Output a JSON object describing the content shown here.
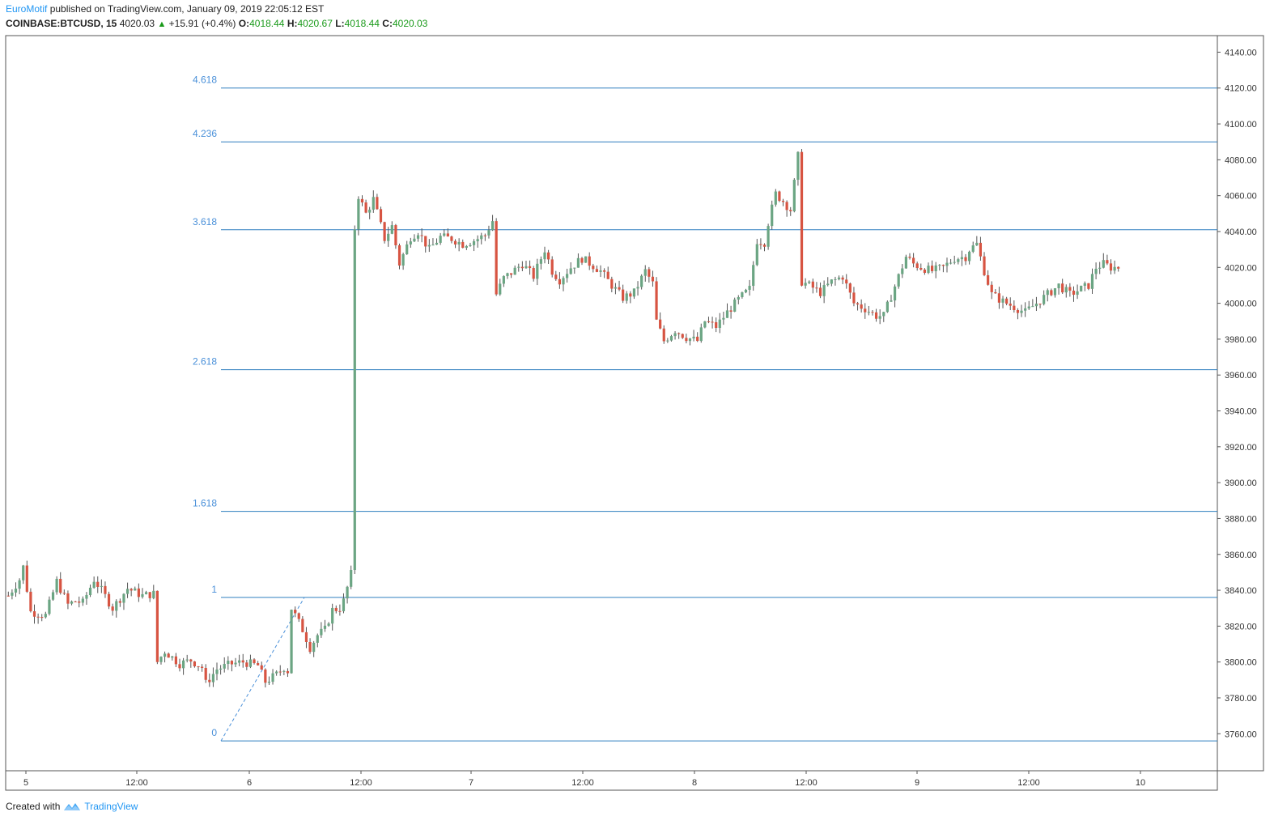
{
  "header": {
    "author": "EuroMotif",
    "published": "published on TradingView.com, January 09, 2019 22:05:12 EST",
    "symbol": "COINBASE:BTCUSD, 15",
    "last": "4020.03",
    "change_icon": "triangle-up-icon",
    "change": "+15.91 (+0.4%)",
    "o_label": "O:",
    "o": "4018.44",
    "h_label": "H:",
    "h": "4020.67",
    "l_label": "L:",
    "l": "4018.44",
    "c_label": "C:",
    "c": "4020.03"
  },
  "footer": {
    "created_with": "Created with",
    "brand": "TradingView",
    "logo_icon": "tradingview-logo-icon"
  },
  "colors": {
    "up": "#6ba583",
    "down": "#d75442",
    "fib": "#2f7fbf",
    "fib_label": "#4a90d9",
    "axis": "#555555"
  },
  "chart_data": {
    "type": "candlestick",
    "symbol": "COINBASE:BTCUSD",
    "interval": "15",
    "ylim": [
      3745,
      4150
    ],
    "y_ticks": [
      "4140.00",
      "4120.00",
      "4100.00",
      "4080.00",
      "4060.00",
      "4040.00",
      "4020.00",
      "4000.00",
      "3980.00",
      "3960.00",
      "3940.00",
      "3920.00",
      "3900.00",
      "3880.00",
      "3860.00",
      "3840.00",
      "3820.00",
      "3800.00",
      "3780.00",
      "3760.00"
    ],
    "x_ticks": [
      "5",
      "12:00",
      "6",
      "12:00",
      "7",
      "12:00",
      "8",
      "12:00",
      "9",
      "12:00",
      "10"
    ],
    "fib_extension": {
      "anchor_low": 3756,
      "anchor_high": 3836,
      "levels": [
        {
          "label": "0",
          "price": 3756
        },
        {
          "label": "1",
          "price": 3836
        },
        {
          "label": "1.618",
          "price": 3884
        },
        {
          "label": "2.618",
          "price": 3963
        },
        {
          "label": "3.618",
          "price": 4041
        },
        {
          "label": "4.236",
          "price": 4090
        },
        {
          "label": "4.618",
          "price": 4120
        }
      ]
    },
    "price_path": [
      [
        0,
        3837
      ],
      [
        3,
        3846
      ],
      [
        4,
        3853
      ],
      [
        6,
        3828
      ],
      [
        10,
        3826
      ],
      [
        13,
        3845
      ],
      [
        16,
        3832
      ],
      [
        18,
        3834
      ],
      [
        20,
        3833
      ],
      [
        23,
        3846
      ],
      [
        25,
        3840
      ],
      [
        28,
        3830
      ],
      [
        32,
        3841
      ],
      [
        36,
        3837
      ],
      [
        39,
        3838
      ],
      [
        40,
        3800
      ],
      [
        42,
        3806
      ],
      [
        46,
        3799
      ],
      [
        49,
        3801
      ],
      [
        52,
        3797
      ],
      [
        53,
        3788
      ],
      [
        56,
        3796
      ],
      [
        60,
        3799
      ],
      [
        63,
        3800
      ],
      [
        67,
        3798
      ],
      [
        69,
        3789
      ],
      [
        72,
        3793
      ],
      [
        74,
        3797
      ],
      [
        75,
        3795
      ],
      [
        76,
        3830
      ],
      [
        79,
        3818
      ],
      [
        81,
        3808
      ],
      [
        83,
        3815
      ],
      [
        85,
        3818
      ],
      [
        87,
        3829
      ],
      [
        89,
        3830
      ],
      [
        90,
        3834
      ],
      [
        92,
        3849
      ],
      [
        93,
        4042
      ],
      [
        94,
        4060
      ],
      [
        96,
        4050
      ],
      [
        98,
        4058
      ],
      [
        101,
        4036
      ],
      [
        103,
        4043
      ],
      [
        105,
        4022
      ],
      [
        108,
        4037
      ],
      [
        110,
        4040
      ],
      [
        113,
        4030
      ],
      [
        116,
        4037
      ],
      [
        119,
        4036
      ],
      [
        122,
        4033
      ],
      [
        125,
        4035
      ],
      [
        128,
        4038
      ],
      [
        130,
        4046
      ],
      [
        131,
        4005
      ],
      [
        133,
        4014
      ],
      [
        135,
        4017
      ],
      [
        138,
        4022
      ],
      [
        141,
        4015
      ],
      [
        144,
        4030
      ],
      [
        146,
        4018
      ],
      [
        148,
        4013
      ],
      [
        151,
        4020
      ],
      [
        154,
        4025
      ],
      [
        157,
        4021
      ],
      [
        159,
        4018
      ],
      [
        162,
        4010
      ],
      [
        165,
        4003
      ],
      [
        168,
        4006
      ],
      [
        171,
        4018
      ],
      [
        173,
        4011
      ],
      [
        174,
        3990
      ],
      [
        176,
        3979
      ],
      [
        179,
        3985
      ],
      [
        182,
        3981
      ],
      [
        185,
        3979
      ],
      [
        187,
        3990
      ],
      [
        190,
        3987
      ],
      [
        193,
        3995
      ],
      [
        196,
        4002
      ],
      [
        199,
        4008
      ],
      [
        201,
        4035
      ],
      [
        203,
        4034
      ],
      [
        204,
        4045
      ],
      [
        206,
        4061
      ],
      [
        208,
        4057
      ],
      [
        210,
        4052
      ],
      [
        212,
        4082
      ],
      [
        213,
        4012
      ],
      [
        215,
        4010
      ],
      [
        218,
        4006
      ],
      [
        221,
        4012
      ],
      [
        224,
        4015
      ],
      [
        227,
        4000
      ],
      [
        230,
        3997
      ],
      [
        233,
        3993
      ],
      [
        235,
        3993
      ],
      [
        237,
        4004
      ],
      [
        239,
        4015
      ],
      [
        241,
        4026
      ],
      [
        243,
        4022
      ],
      [
        245,
        4020
      ],
      [
        248,
        4018
      ],
      [
        251,
        4020
      ],
      [
        254,
        4025
      ],
      [
        257,
        4026
      ],
      [
        258,
        4030
      ],
      [
        260,
        4033
      ],
      [
        262,
        4018
      ],
      [
        264,
        4005
      ],
      [
        267,
        4001
      ],
      [
        270,
        3998
      ],
      [
        273,
        3995
      ],
      [
        276,
        4000
      ],
      [
        279,
        4005
      ],
      [
        282,
        4010
      ],
      [
        285,
        4005
      ],
      [
        288,
        4008
      ],
      [
        290,
        4010
      ],
      [
        292,
        4020
      ],
      [
        294,
        4022
      ],
      [
        296,
        4020
      ],
      [
        298,
        4020
      ]
    ]
  }
}
